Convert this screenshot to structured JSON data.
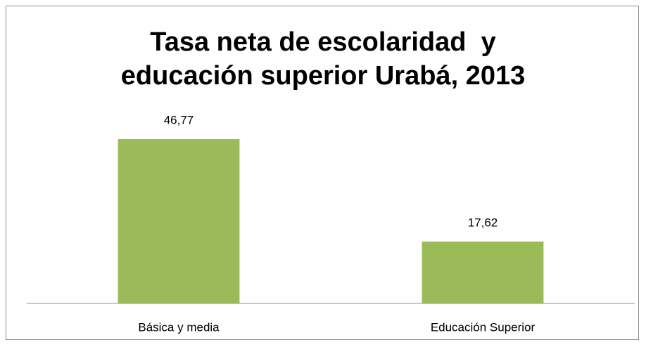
{
  "chart_data": {
    "type": "bar",
    "title": "Tasa neta de escolaridad  y educación superior Urabá, 2013",
    "categories": [
      "Básica y media",
      "Educación Superior"
    ],
    "values": [
      46.77,
      17.62
    ],
    "value_labels": [
      "46,77",
      "17,62"
    ],
    "color": "#9bbb59"
  }
}
